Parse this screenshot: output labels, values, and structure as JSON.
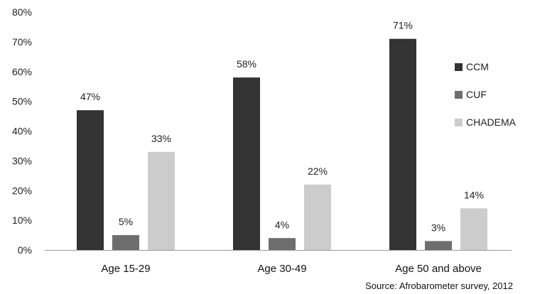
{
  "chart_data": {
    "type": "bar",
    "categories": [
      "Age 15-29",
      "Age 30-49",
      "Age 50 and above"
    ],
    "series": [
      {
        "name": "CCM",
        "values": [
          47,
          58,
          71
        ],
        "color": "#333333"
      },
      {
        "name": "CUF",
        "values": [
          5,
          4,
          3
        ],
        "color": "#6e6e6e"
      },
      {
        "name": "CHADEMA",
        "values": [
          33,
          22,
          14
        ],
        "color": "#cccccc"
      }
    ],
    "data_labels": [
      [
        "47%",
        "58%",
        "71%"
      ],
      [
        "5%",
        "4%",
        "3%"
      ],
      [
        "33%",
        "22%",
        "14%"
      ]
    ],
    "ylim": [
      0,
      80
    ],
    "yticks": [
      0,
      10,
      20,
      30,
      40,
      50,
      60,
      70,
      80
    ],
    "ytick_labels": [
      "0%",
      "10%",
      "20%",
      "30%",
      "40%",
      "50%",
      "60%",
      "70%",
      "80%"
    ],
    "grid": false,
    "legend_position": "right",
    "source": "Source: Afrobarometer survey, 2012"
  }
}
